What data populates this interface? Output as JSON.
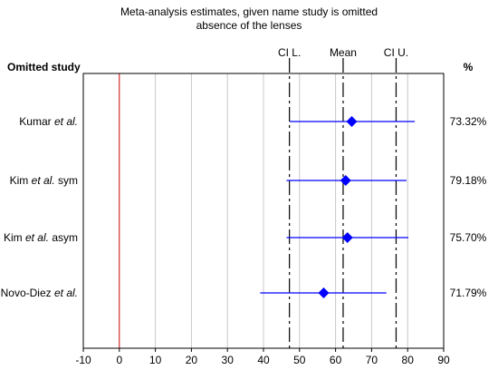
{
  "chart_data": {
    "type": "forest",
    "title": "Meta-analysis estimates, given name study is omitted",
    "subtitle": "absence of the lenses",
    "row_header": "Omitted study",
    "pct_header": "%",
    "reference_lines": [
      {
        "label": "CI L.",
        "value": 47.2
      },
      {
        "label": "Mean",
        "value": 62.1
      },
      {
        "label": "CI U.",
        "value": 76.8
      }
    ],
    "zero_line": 0,
    "xlim": [
      -10,
      90
    ],
    "xticks": [
      -10,
      0,
      10,
      20,
      30,
      40,
      50,
      60,
      70,
      80,
      90
    ],
    "grid": true,
    "studies": [
      {
        "name": "Kumar",
        "etal": "et al.",
        "suffix": "",
        "estimate": 64.5,
        "ci_low": 47.3,
        "ci_high": 82.0,
        "pct": "73.32%"
      },
      {
        "name": "Kim",
        "etal": "et al.",
        "suffix": "sym",
        "estimate": 62.8,
        "ci_low": 46.4,
        "ci_high": 79.7,
        "pct": "79.18%"
      },
      {
        "name": "Kim",
        "etal": "et al.",
        "suffix": "asym",
        "estimate": 63.3,
        "ci_low": 46.4,
        "ci_high": 80.2,
        "pct": "75.70%"
      },
      {
        "name": "Novo-Diez",
        "etal": "et al.",
        "suffix": "",
        "estimate": 56.7,
        "ci_low": 39.1,
        "ci_high": 74.1,
        "pct": "71.79%"
      }
    ],
    "colors": {
      "interval": "#0000ff",
      "zero_line": "#cc0000",
      "grid": "#c8c8c8",
      "axis": "#000000"
    }
  }
}
